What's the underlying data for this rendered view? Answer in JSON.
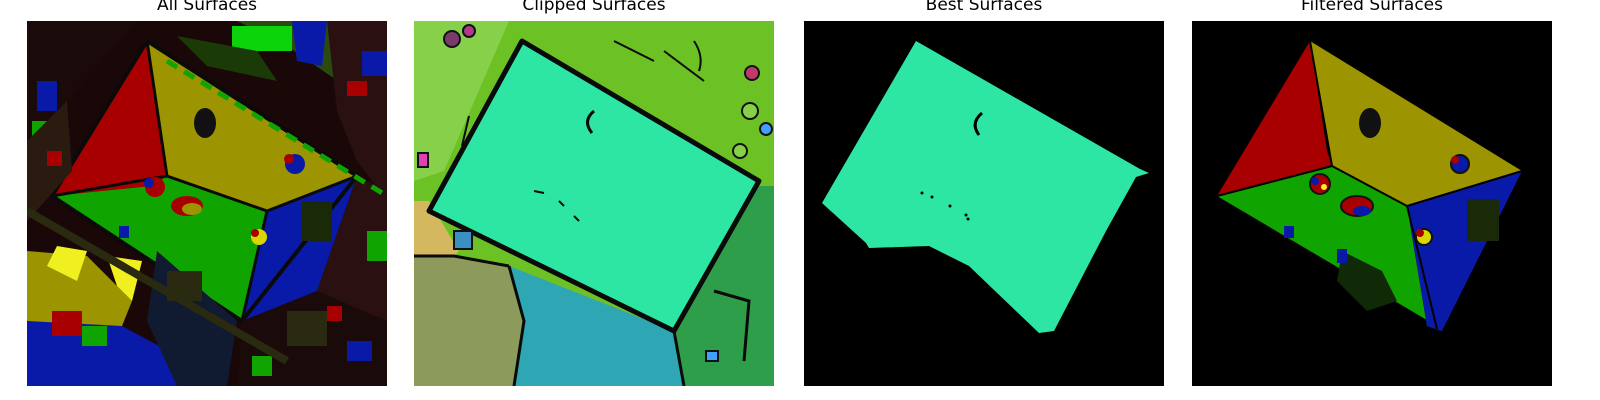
{
  "figure": {
    "panels": [
      {
        "title": "All Surfaces",
        "image": "segmentation-all-surfaces"
      },
      {
        "title": "Clipped Surfaces",
        "image": "segmentation-clipped-surfaces"
      },
      {
        "title": "Best Surfaces",
        "image": "segmentation-best-surface"
      },
      {
        "title": "Filtered Surfaces",
        "image": "segmentation-filtered-surfaces"
      }
    ]
  },
  "colors": {
    "red_roof": "#a80000",
    "olive_roof": "#9c9400",
    "green_roof": "#10a400",
    "blue_roof": "#0a1aa8",
    "mint_surface": "#2ee6a4",
    "lime_ground": "#6cc224",
    "background": "#000000"
  }
}
